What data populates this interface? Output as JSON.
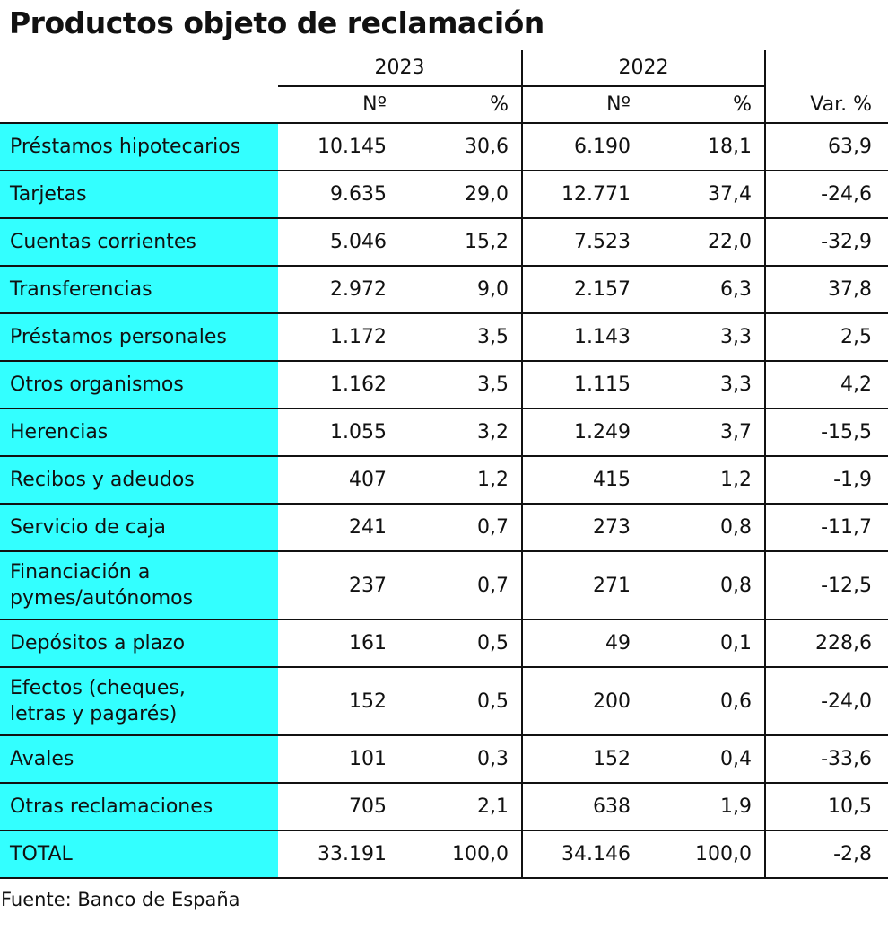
{
  "title": "Productos objeto de reclamación",
  "source": "Fuente: Banco de España",
  "chart_data": {
    "type": "table",
    "title": "Productos objeto de reclamación",
    "column_groups": [
      "2023",
      "2022"
    ],
    "subheaders": [
      "Nº",
      "%",
      "Nº",
      "%",
      "Var. %"
    ],
    "rows": [
      {
        "label": "Préstamos hipotecarios",
        "values": [
          "10.145",
          "30,6",
          "6.190",
          "18,1",
          "63,9"
        ]
      },
      {
        "label": "Tarjetas",
        "values": [
          "9.635",
          "29,0",
          "12.771",
          "37,4",
          "-24,6"
        ]
      },
      {
        "label": "Cuentas corrientes",
        "values": [
          "5.046",
          "15,2",
          "7.523",
          "22,0",
          "-32,9"
        ]
      },
      {
        "label": "Transferencias",
        "values": [
          "2.972",
          "9,0",
          "2.157",
          "6,3",
          "37,8"
        ]
      },
      {
        "label": "Préstamos personales",
        "values": [
          "1.172",
          "3,5",
          "1.143",
          "3,3",
          "2,5"
        ]
      },
      {
        "label": "Otros organismos",
        "values": [
          "1.162",
          "3,5",
          "1.115",
          "3,3",
          "4,2"
        ]
      },
      {
        "label": "Herencias",
        "values": [
          "1.055",
          "3,2",
          "1.249",
          "3,7",
          "-15,5"
        ]
      },
      {
        "label": "Recibos y adeudos",
        "values": [
          "407",
          "1,2",
          "415",
          "1,2",
          "-1,9"
        ]
      },
      {
        "label": "Servicio de caja",
        "values": [
          "241",
          "0,7",
          "273",
          "0,8",
          "-11,7"
        ]
      },
      {
        "label": "Financiación a pymes/autónomos",
        "lines": [
          "Financiación a",
          "pymes/autónomos"
        ],
        "values": [
          "237",
          "0,7",
          "271",
          "0,8",
          "-12,5"
        ]
      },
      {
        "label": "Depósitos a plazo",
        "values": [
          "161",
          "0,5",
          "49",
          "0,1",
          "228,6"
        ]
      },
      {
        "label": "Efectos (cheques, letras y pagarés)",
        "lines": [
          "Efectos (cheques,",
          "letras y pagarés)"
        ],
        "values": [
          "152",
          "0,5",
          "200",
          "0,6",
          "-24,0"
        ]
      },
      {
        "label": "Avales",
        "values": [
          "101",
          "0,3",
          "152",
          "0,4",
          "-33,6"
        ]
      },
      {
        "label": "Otras reclamaciones",
        "values": [
          "705",
          "2,1",
          "638",
          "1,9",
          "10,5"
        ]
      },
      {
        "label": "TOTAL",
        "values": [
          "33.191",
          "100,0",
          "34.146",
          "100,0",
          "-2,8"
        ]
      }
    ]
  },
  "colors": {
    "label_fill": "#33ffff",
    "rule": "#111111",
    "text": "#111111"
  }
}
